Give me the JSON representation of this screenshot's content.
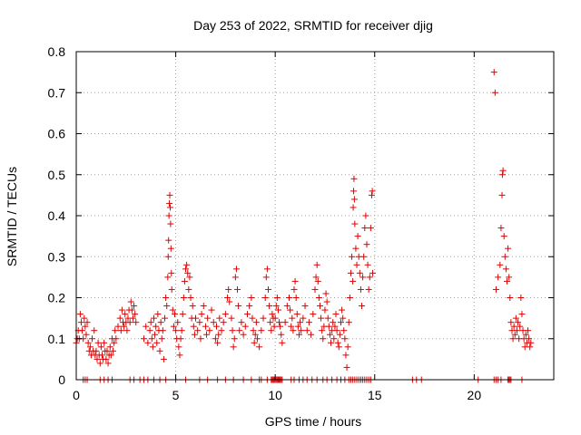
{
  "chart_data": {
    "type": "scatter",
    "title": "Day 253 of 2022, SRMTID for receiver djig",
    "xlabel": "GPS time / hours",
    "ylabel": "SRMTID / TECUs",
    "xlim": [
      0,
      24
    ],
    "ylim": [
      0,
      0.8
    ],
    "xticks": [
      0,
      5,
      10,
      15,
      20
    ],
    "xtick_labels": [
      "0",
      "5",
      "10",
      "15",
      "20"
    ],
    "yticks": [
      0,
      0.1,
      0.2,
      0.3,
      0.4,
      0.5,
      0.6,
      0.7,
      0.8
    ],
    "ytick_labels": [
      "0",
      "0.1",
      "0.2",
      "0.3",
      "0.4",
      "0.5",
      "0.6",
      "0.7",
      "0.8"
    ],
    "grid": true,
    "marker": "+",
    "color": "#e00000",
    "series": [
      {
        "name": "SRMTID",
        "points": [
          [
            0.0,
            0.09
          ],
          [
            0.05,
            0.1
          ],
          [
            0.1,
            0.12
          ],
          [
            0.15,
            0.1
          ],
          [
            0.2,
            0.16
          ],
          [
            0.25,
            0.14
          ],
          [
            0.3,
            0.12
          ],
          [
            0.35,
            0.1
          ],
          [
            0.4,
            0.15
          ],
          [
            0.45,
            0.13
          ],
          [
            0.5,
            0.11
          ],
          [
            0.55,
            0.14
          ],
          [
            0.6,
            0.09
          ],
          [
            0.65,
            0.07
          ],
          [
            0.7,
            0.08
          ],
          [
            0.75,
            0.06
          ],
          [
            0.8,
            0.1
          ],
          [
            0.85,
            0.07
          ],
          [
            0.9,
            0.12
          ],
          [
            0.95,
            0.06
          ],
          [
            1.0,
            0.07
          ],
          [
            1.05,
            0.05
          ],
          [
            1.1,
            0.09
          ],
          [
            1.15,
            0.06
          ],
          [
            1.2,
            0.04
          ],
          [
            1.25,
            0.08
          ],
          [
            1.3,
            0.06
          ],
          [
            1.35,
            0.05
          ],
          [
            1.4,
            0.09
          ],
          [
            1.45,
            0.07
          ],
          [
            1.5,
            0.05
          ],
          [
            1.55,
            0.07
          ],
          [
            1.6,
            0.04
          ],
          [
            1.65,
            0.06
          ],
          [
            1.7,
            0.08
          ],
          [
            1.75,
            0.06
          ],
          [
            1.8,
            0.1
          ],
          [
            1.85,
            0.07
          ],
          [
            1.9,
            0.09
          ],
          [
            1.95,
            0.12
          ],
          [
            2.0,
            0.1
          ],
          [
            2.1,
            0.13
          ],
          [
            2.2,
            0.15
          ],
          [
            2.25,
            0.12
          ],
          [
            2.3,
            0.17
          ],
          [
            2.35,
            0.14
          ],
          [
            2.4,
            0.13
          ],
          [
            2.45,
            0.16
          ],
          [
            2.5,
            0.14
          ],
          [
            2.55,
            0.12
          ],
          [
            2.6,
            0.15
          ],
          [
            2.65,
            0.17
          ],
          [
            2.7,
            0.14
          ],
          [
            2.75,
            0.19
          ],
          [
            2.8,
            0.17
          ],
          [
            2.85,
            0.15
          ],
          [
            2.9,
            0.18
          ],
          [
            2.95,
            0.16
          ],
          [
            3.0,
            0.14
          ],
          [
            3.4,
            0.1
          ],
          [
            3.5,
            0.13
          ],
          [
            3.6,
            0.09
          ],
          [
            3.7,
            0.12
          ],
          [
            3.75,
            0.14
          ],
          [
            3.8,
            0.1
          ],
          [
            3.85,
            0.08
          ],
          [
            3.9,
            0.15
          ],
          [
            3.95,
            0.11
          ],
          [
            4.0,
            0.13
          ],
          [
            4.05,
            0.09
          ],
          [
            4.1,
            0.16
          ],
          [
            4.15,
            0.12
          ],
          [
            4.2,
            0.07
          ],
          [
            4.25,
            0.14
          ],
          [
            4.3,
            0.1
          ],
          [
            4.35,
            0.12
          ],
          [
            4.4,
            0.05
          ],
          [
            4.45,
            0.15
          ],
          [
            4.5,
            0.2
          ],
          [
            4.55,
            0.18
          ],
          [
            4.6,
            0.25
          ],
          [
            4.62,
            0.3
          ],
          [
            4.64,
            0.34
          ],
          [
            4.66,
            0.4
          ],
          [
            4.68,
            0.43
          ],
          [
            4.7,
            0.45
          ],
          [
            4.72,
            0.42
          ],
          [
            4.74,
            0.38
          ],
          [
            4.76,
            0.32
          ],
          [
            4.78,
            0.26
          ],
          [
            4.8,
            0.22
          ],
          [
            4.85,
            0.17
          ],
          [
            4.9,
            0.13
          ],
          [
            4.95,
            0.16
          ],
          [
            5.0,
            0.12
          ],
          [
            5.05,
            0.1
          ],
          [
            5.1,
            0.14
          ],
          [
            5.15,
            0.08
          ],
          [
            5.2,
            0.06
          ],
          [
            5.25,
            0.1
          ],
          [
            5.3,
            0.12
          ],
          [
            5.35,
            0.16
          ],
          [
            5.4,
            0.2
          ],
          [
            5.45,
            0.24
          ],
          [
            5.5,
            0.27
          ],
          [
            5.55,
            0.28
          ],
          [
            5.6,
            0.26
          ],
          [
            5.65,
            0.22
          ],
          [
            5.7,
            0.25
          ],
          [
            5.75,
            0.2
          ],
          [
            5.8,
            0.15
          ],
          [
            5.85,
            0.18
          ],
          [
            5.9,
            0.13
          ],
          [
            5.95,
            0.11
          ],
          [
            6.0,
            0.15
          ],
          [
            6.1,
            0.12
          ],
          [
            6.2,
            0.14
          ],
          [
            6.25,
            0.1
          ],
          [
            6.3,
            0.16
          ],
          [
            6.4,
            0.18
          ],
          [
            6.5,
            0.13
          ],
          [
            6.55,
            0.11
          ],
          [
            6.6,
            0.15
          ],
          [
            6.7,
            0.12
          ],
          [
            6.8,
            0.17
          ],
          [
            6.9,
            0.14
          ],
          [
            7.0,
            0.1
          ],
          [
            7.05,
            0.13
          ],
          [
            7.1,
            0.09
          ],
          [
            7.15,
            0.11
          ],
          [
            7.2,
            0.15
          ],
          [
            7.3,
            0.12
          ],
          [
            7.4,
            0.14
          ],
          [
            7.5,
            0.16
          ],
          [
            7.6,
            0.2
          ],
          [
            7.65,
            0.22
          ],
          [
            7.7,
            0.19
          ],
          [
            7.8,
            0.15
          ],
          [
            7.85,
            0.12
          ],
          [
            7.9,
            0.08
          ],
          [
            7.95,
            0.1
          ],
          [
            8.0,
            0.25
          ],
          [
            8.05,
            0.27
          ],
          [
            8.1,
            0.22
          ],
          [
            8.15,
            0.18
          ],
          [
            8.2,
            0.12
          ],
          [
            8.3,
            0.14
          ],
          [
            8.4,
            0.11
          ],
          [
            8.5,
            0.13
          ],
          [
            8.6,
            0.16
          ],
          [
            8.7,
            0.18
          ],
          [
            8.8,
            0.2
          ],
          [
            8.85,
            0.15
          ],
          [
            8.9,
            0.12
          ],
          [
            8.95,
            0.09
          ],
          [
            9.0,
            0.11
          ],
          [
            9.05,
            0.14
          ],
          [
            9.1,
            0.1
          ],
          [
            9.2,
            0.08
          ],
          [
            9.3,
            0.12
          ],
          [
            9.4,
            0.15
          ],
          [
            9.5,
            0.2
          ],
          [
            9.55,
            0.25
          ],
          [
            9.6,
            0.27
          ],
          [
            9.65,
            0.22
          ],
          [
            9.7,
            0.18
          ],
          [
            9.75,
            0.14
          ],
          [
            9.8,
            0.12
          ],
          [
            9.85,
            0.16
          ],
          [
            9.9,
            0.15
          ],
          [
            9.95,
            0.13
          ],
          [
            10.0,
            0.15
          ],
          [
            10.05,
            0.18
          ],
          [
            10.1,
            0.2
          ],
          [
            10.15,
            0.17
          ],
          [
            10.2,
            0.14
          ],
          [
            10.25,
            0.13
          ],
          [
            10.3,
            0.11
          ],
          [
            10.35,
            0.09
          ],
          [
            10.5,
            0.14
          ],
          [
            10.6,
            0.18
          ],
          [
            10.7,
            0.2
          ],
          [
            10.75,
            0.17
          ],
          [
            10.8,
            0.13
          ],
          [
            10.85,
            0.15
          ],
          [
            10.9,
            0.12
          ],
          [
            10.95,
            0.22
          ],
          [
            11.0,
            0.24
          ],
          [
            11.05,
            0.2
          ],
          [
            11.1,
            0.16
          ],
          [
            11.15,
            0.13
          ],
          [
            11.2,
            0.11
          ],
          [
            11.25,
            0.14
          ],
          [
            11.3,
            0.12
          ],
          [
            11.4,
            0.15
          ],
          [
            11.5,
            0.18
          ],
          [
            11.6,
            0.12
          ],
          [
            11.7,
            0.14
          ],
          [
            11.8,
            0.11
          ],
          [
            11.9,
            0.16
          ],
          [
            12.0,
            0.22
          ],
          [
            12.05,
            0.25
          ],
          [
            12.1,
            0.28
          ],
          [
            12.15,
            0.24
          ],
          [
            12.2,
            0.2
          ],
          [
            12.25,
            0.18
          ],
          [
            12.3,
            0.15
          ],
          [
            12.35,
            0.12
          ],
          [
            12.4,
            0.1
          ],
          [
            12.45,
            0.13
          ],
          [
            12.5,
            0.17
          ],
          [
            12.55,
            0.21
          ],
          [
            12.6,
            0.19
          ],
          [
            12.65,
            0.15
          ],
          [
            12.7,
            0.13
          ],
          [
            12.75,
            0.11
          ],
          [
            12.8,
            0.09
          ],
          [
            12.85,
            0.12
          ],
          [
            12.9,
            0.14
          ],
          [
            12.95,
            0.1
          ],
          [
            13.0,
            0.13
          ],
          [
            13.05,
            0.16
          ],
          [
            13.1,
            0.12
          ],
          [
            13.15,
            0.09
          ],
          [
            13.2,
            0.08
          ],
          [
            13.25,
            0.11
          ],
          [
            13.3,
            0.14
          ],
          [
            13.35,
            0.17
          ],
          [
            13.4,
            0.15
          ],
          [
            13.45,
            0.12
          ],
          [
            13.5,
            0.1
          ],
          [
            13.55,
            0.06
          ],
          [
            13.6,
            0.03
          ],
          [
            13.65,
            0.08
          ],
          [
            13.7,
            0.14
          ],
          [
            13.75,
            0.2
          ],
          [
            13.8,
            0.26
          ],
          [
            13.85,
            0.3
          ],
          [
            13.9,
            0.24
          ],
          [
            13.92,
            0.42
          ],
          [
            13.94,
            0.46
          ],
          [
            13.96,
            0.49
          ],
          [
            13.98,
            0.44
          ],
          [
            14.0,
            0.38
          ],
          [
            14.05,
            0.32
          ],
          [
            14.1,
            0.28
          ],
          [
            14.15,
            0.35
          ],
          [
            14.2,
            0.3
          ],
          [
            14.25,
            0.26
          ],
          [
            14.3,
            0.22
          ],
          [
            14.35,
            0.18
          ],
          [
            14.4,
            0.25
          ],
          [
            14.45,
            0.3
          ],
          [
            14.5,
            0.37
          ],
          [
            14.55,
            0.4
          ],
          [
            14.6,
            0.33
          ],
          [
            14.65,
            0.28
          ],
          [
            14.7,
            0.22
          ],
          [
            14.75,
            0.25
          ],
          [
            14.8,
            0.37
          ],
          [
            14.85,
            0.45
          ],
          [
            14.88,
            0.46
          ],
          [
            14.9,
            0.26
          ],
          [
            21.0,
            0.75
          ],
          [
            21.05,
            0.7
          ],
          [
            21.1,
            0.22
          ],
          [
            21.2,
            0.25
          ],
          [
            21.3,
            0.28
          ],
          [
            21.35,
            0.37
          ],
          [
            21.4,
            0.45
          ],
          [
            21.42,
            0.5
          ],
          [
            21.45,
            0.51
          ],
          [
            21.5,
            0.35
          ],
          [
            21.55,
            0.3
          ],
          [
            21.6,
            0.27
          ],
          [
            21.65,
            0.24
          ],
          [
            21.7,
            0.32
          ],
          [
            21.75,
            0.25
          ],
          [
            21.8,
            0.2
          ],
          [
            21.85,
            0.14
          ],
          [
            21.9,
            0.12
          ],
          [
            21.95,
            0.1
          ],
          [
            22.0,
            0.13
          ],
          [
            22.05,
            0.11
          ],
          [
            22.1,
            0.15
          ],
          [
            22.15,
            0.12
          ],
          [
            22.2,
            0.14
          ],
          [
            22.25,
            0.1
          ],
          [
            22.3,
            0.13
          ],
          [
            22.35,
            0.2
          ],
          [
            22.4,
            0.16
          ],
          [
            22.45,
            0.12
          ],
          [
            22.5,
            0.1
          ],
          [
            22.55,
            0.08
          ],
          [
            22.6,
            0.11
          ],
          [
            22.65,
            0.09
          ],
          [
            22.7,
            0.12
          ],
          [
            22.75,
            0.1
          ],
          [
            22.8,
            0.08
          ],
          [
            22.85,
            0.09
          ]
        ],
        "zero_points_x": [
          0.35,
          0.45,
          0.55,
          1.2,
          1.4,
          1.6,
          1.8,
          2.7,
          2.9,
          3.2,
          3.4,
          3.6,
          3.9,
          4.2,
          4.5,
          5.0,
          5.5,
          6.2,
          6.6,
          7.1,
          7.5,
          7.9,
          8.4,
          8.8,
          9.2,
          9.3,
          9.6,
          9.8,
          9.85,
          9.9,
          9.95,
          10.0,
          10.05,
          10.1,
          10.15,
          10.2,
          10.25,
          10.3,
          10.35,
          10.8,
          10.95,
          11.2,
          11.4,
          11.6,
          11.85,
          12.1,
          12.4,
          12.6,
          12.85,
          13.1,
          13.3,
          13.5,
          13.7,
          13.8,
          13.9,
          14.0,
          14.1,
          14.2,
          14.3,
          14.4,
          14.5,
          14.6,
          14.7,
          14.8,
          16.9,
          17.1,
          17.35,
          20.2,
          21.0,
          21.1,
          21.2,
          21.35,
          21.7,
          21.75,
          21.8,
          21.85,
          22.4
        ]
      }
    ]
  }
}
